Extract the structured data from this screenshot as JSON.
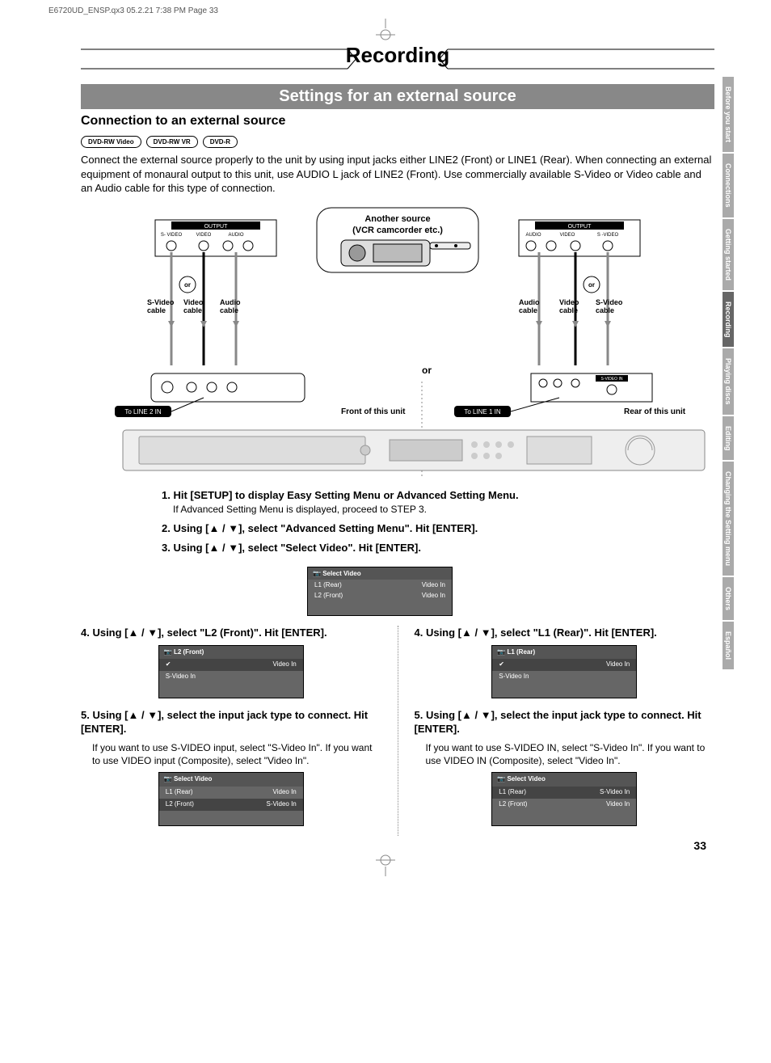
{
  "meta_header": "E6720UD_ENSP.qx3   05.2.21 7:38 PM   Page 33",
  "title": "Recording",
  "subtitle": "Settings for an external source",
  "section_heading": "Connection to an external source",
  "disc_icons": [
    "DVD-RW Video",
    "DVD-RW VR",
    "DVD-R"
  ],
  "intro_paragraph": "Connect the external source properly to the unit by using input jacks either LINE2 (Front) or LINE1 (Rear). When connecting an external equipment of monaural output to this unit, use AUDIO L jack of LINE2 (Front). Use commercially available S-Video or Video cable and an Audio cable for this type of connection.",
  "diagram": {
    "another_source": "Another source\n(VCR camcorder etc.)",
    "output_label": "OUTPUT",
    "left_jacks": [
      "S- VIDEO",
      "VIDEO",
      "AUDIO"
    ],
    "right_jacks": [
      "AUDIO",
      "VIDEO",
      "S -VIDEO"
    ],
    "or_label": "or",
    "cables_left": [
      "S-Video cable",
      "Video cable",
      "Audio cable"
    ],
    "cables_right": [
      "Audio cable",
      "Video cable",
      "S-Video cable"
    ],
    "to_line2": "To LINE 2 IN",
    "to_line1": "To LINE 1 IN",
    "front_of_unit": "Front of this unit",
    "rear_of_unit": "Rear of this unit",
    "center_or": "or"
  },
  "shared_steps": [
    {
      "num": "1.",
      "bold": "Hit [SETUP] to display Easy Setting Menu or Advanced Setting Menu.",
      "sub": "If Advanced Setting Menu is displayed, proceed to STEP 3."
    },
    {
      "num": "2.",
      "bold": "Using [▲ / ▼], select \"Advanced Setting Menu\". Hit [ENTER]."
    },
    {
      "num": "3.",
      "bold": "Using [▲ / ▼], select \"Select Video\". Hit [ENTER]."
    }
  ],
  "osd_select_video": {
    "title": "Select Video",
    "rows": [
      {
        "left": "L1 (Rear)",
        "right": "Video In"
      },
      {
        "left": "L2 (Front)",
        "right": "Video In"
      }
    ]
  },
  "left_column": {
    "step4": "4. Using [▲ / ▼], select \"L2 (Front)\". Hit [ENTER].",
    "osd4": {
      "title": "L2 (Front)",
      "rows": [
        "Video In",
        "S-Video In"
      ],
      "checked": 0
    },
    "step5": "5. Using [▲ / ▼], select the input jack type to connect. Hit [ENTER].",
    "step5_body": "If you want to use S-VIDEO input, select \"S-Video In\". If you want to use VIDEO input (Composite), select \"Video In\".",
    "osd5": {
      "title": "Select Video",
      "rows": [
        {
          "left": "L1 (Rear)",
          "right": "Video In"
        },
        {
          "left": "L2 (Front)",
          "right": "S-Video In"
        }
      ],
      "highlight": 1
    }
  },
  "right_column": {
    "step4": "4. Using [▲ / ▼], select \"L1 (Rear)\". Hit [ENTER].",
    "osd4": {
      "title": "L1 (Rear)",
      "rows": [
        "Video In",
        "S-Video In"
      ],
      "checked": 0
    },
    "step5": "5. Using [▲ / ▼], select the input jack type to connect. Hit [ENTER].",
    "step5_body": "If you want to use S-VIDEO IN, select \"S-Video In\". If you want to use VIDEO IN (Composite), select \"Video In\".",
    "osd5": {
      "title": "Select Video",
      "rows": [
        {
          "left": "L1 (Rear)",
          "right": "S-Video In"
        },
        {
          "left": "L2 (Front)",
          "right": "Video In"
        }
      ],
      "highlight": 0
    }
  },
  "side_tabs": [
    {
      "label": "Before you start",
      "shade": "gray"
    },
    {
      "label": "Connections",
      "shade": "gray"
    },
    {
      "label": "Getting started",
      "shade": "gray"
    },
    {
      "label": "Recording",
      "shade": "dark"
    },
    {
      "label": "Playing discs",
      "shade": "gray"
    },
    {
      "label": "Editing",
      "shade": "gray"
    },
    {
      "label": "Changing the Setting menu",
      "shade": "gray"
    },
    {
      "label": "Others",
      "shade": "gray"
    },
    {
      "label": "Español",
      "shade": "gray"
    }
  ],
  "page_number": "33",
  "colors": {
    "subtitle_bg": "#888888",
    "tab_gray": "#aaaaaa",
    "tab_dark": "#666666",
    "osd_bg": "#666666"
  }
}
